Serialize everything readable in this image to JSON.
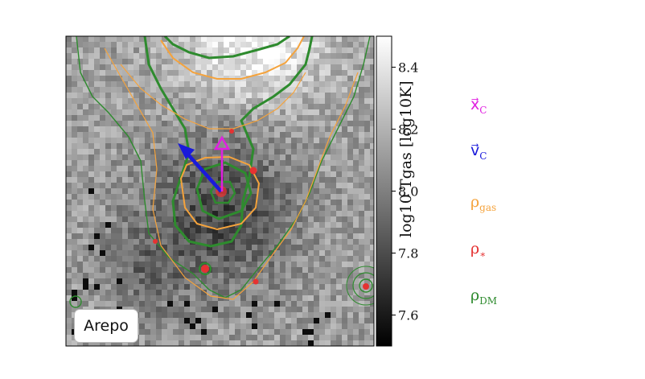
{
  "chart_data": {
    "type": "heatmap",
    "panel_label": "Arepo",
    "colorbar": {
      "label": "log10 Tgas [log10K]",
      "ticks": [
        "8.4",
        "8.2",
        "8.0",
        "7.8",
        "7.6"
      ],
      "tick_values": [
        8.4,
        8.2,
        8.0,
        7.8,
        7.6
      ],
      "range": [
        7.5,
        8.5
      ],
      "colormap": "greys"
    },
    "legend": [
      {
        "symbol": "x_C",
        "color": "#e020e0"
      },
      {
        "symbol": "v_C",
        "color": "#1a1adb"
      },
      {
        "symbol": "rho_gas",
        "color": "#f5a33c"
      },
      {
        "symbol": "rho_*",
        "color": "#e53232"
      },
      {
        "symbol": "rho_DM",
        "color": "#2e8b2e"
      }
    ],
    "colors": {
      "gas": "#f5a33c",
      "stars": "#e53232",
      "dm": "#2e8b2e",
      "position_marker": "#e020e0",
      "velocity_arrow": "#1a1adb"
    }
  }
}
